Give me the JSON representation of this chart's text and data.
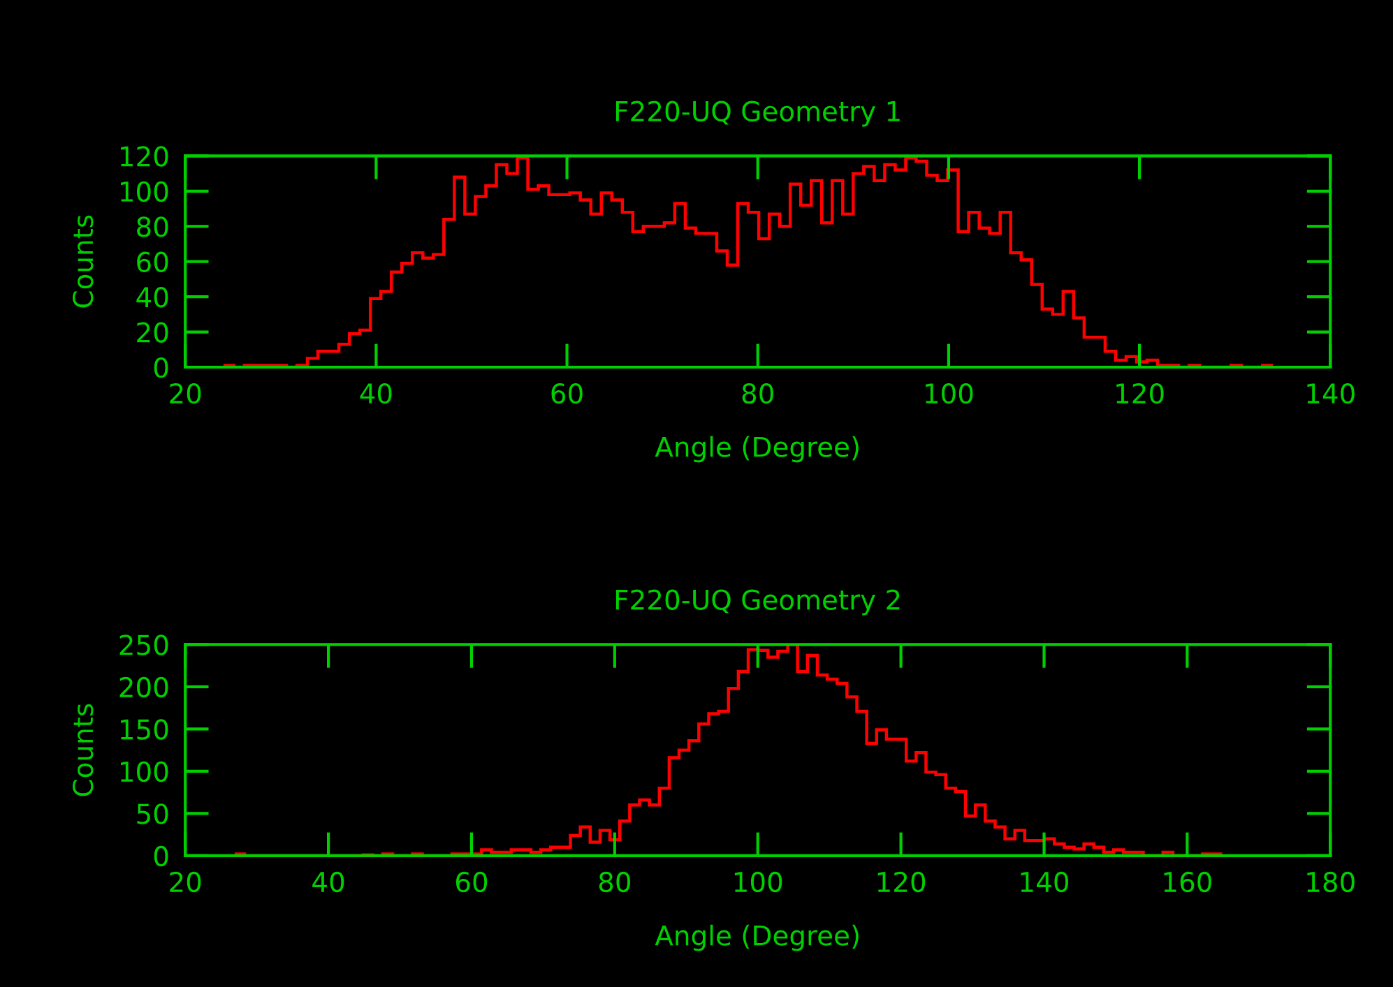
{
  "chart_data": [
    {
      "type": "histogram",
      "title": "F220-UQ Geometry 1",
      "xlabel": "Angle (Degree)",
      "ylabel": "Counts",
      "color": "#ff0000",
      "xlim": [
        20,
        140
      ],
      "ylim": [
        0,
        120
      ],
      "xticks": [
        20,
        40,
        60,
        80,
        100,
        120,
        140
      ],
      "yticks": [
        0,
        20,
        40,
        60,
        80,
        100,
        120
      ],
      "bins": [
        24,
        25.1,
        26.2,
        27.3,
        28.4,
        29.5,
        30.6,
        31.7,
        32.8,
        33.9,
        35,
        36.1,
        37.2,
        38.3,
        39.4,
        40.5,
        41.6,
        42.7,
        43.8,
        44.9,
        46,
        47.1,
        48.2,
        49.3,
        50.4,
        51.5,
        52.6,
        53.7,
        54.8,
        55.9,
        57,
        58.1,
        59.2,
        60.3,
        61.4,
        62.5,
        63.6,
        64.7,
        65.8,
        66.9,
        68,
        69.1,
        70.2,
        71.3,
        72.4,
        73.5,
        74.6,
        75.7,
        76.8,
        77.9,
        79,
        80.1,
        81.2,
        82.3,
        83.4,
        84.5,
        85.6,
        86.7,
        87.8,
        88.9,
        90,
        91.1,
        92.2,
        93.3,
        94.4,
        95.5,
        96.6,
        97.7,
        98.8,
        99.9,
        101,
        102.1,
        103.2,
        104.3,
        105.4,
        106.5,
        107.6,
        108.7,
        109.8,
        110.9,
        112,
        113.1,
        114.2,
        115.3,
        116.4,
        117.5,
        118.6,
        119.7,
        120.8,
        121.9,
        123,
        124.1,
        125.2,
        126.3,
        127.4,
        128.5,
        129.6,
        130.7,
        131.8,
        132.9,
        134
      ],
      "values": [
        1,
        0,
        1,
        1,
        1,
        1,
        0,
        1,
        5,
        9,
        9,
        13,
        19,
        21,
        39,
        43,
        54,
        59,
        65,
        62,
        64,
        84,
        108,
        87,
        97,
        103,
        115,
        110,
        119,
        101,
        103,
        98,
        98,
        99,
        95,
        87,
        99,
        95,
        88,
        77,
        80,
        80,
        82,
        93,
        79,
        76,
        76,
        66,
        58,
        93,
        88,
        73,
        87,
        80,
        104,
        92,
        106,
        82,
        106,
        87,
        110,
        114,
        106,
        115,
        112,
        119,
        117,
        109,
        106,
        112,
        77,
        88,
        79,
        76,
        88,
        65,
        61,
        47,
        33,
        30,
        43,
        28,
        17,
        17,
        9,
        4,
        6,
        3,
        4,
        1,
        1,
        0,
        1,
        0,
        0,
        0,
        1,
        0,
        0,
        1
      ]
    },
    {
      "type": "histogram",
      "title": "F220-UQ Geometry 2",
      "xlabel": "Angle (Degree)",
      "ylabel": "Counts",
      "color": "#ff0000",
      "xlim": [
        20,
        180
      ],
      "ylim": [
        0,
        250
      ],
      "xticks": [
        20,
        40,
        60,
        80,
        100,
        120,
        140,
        160,
        180
      ],
      "yticks": [
        0,
        50,
        100,
        150,
        200,
        250
      ],
      "bins": [
        26.9,
        28.28,
        29.66,
        31.04,
        32.42,
        33.8,
        35.18,
        36.56,
        37.94,
        39.32,
        40.7,
        42.08,
        43.46,
        44.84,
        46.22,
        47.6,
        48.98,
        50.36,
        51.74,
        53.12,
        54.5,
        55.88,
        57.26,
        58.64,
        60.02,
        61.4,
        62.78,
        64.16,
        65.54,
        66.92,
        68.3,
        69.68,
        71.06,
        72.44,
        73.82,
        75.2,
        76.58,
        77.96,
        79.34,
        80.72,
        82.1,
        83.48,
        84.86,
        86.24,
        87.62,
        89,
        90.38,
        91.76,
        93.14,
        94.52,
        95.9,
        97.28,
        98.66,
        100.04,
        101.42,
        102.8,
        104.18,
        105.56,
        106.94,
        108.32,
        109.7,
        111.08,
        112.46,
        113.84,
        115.22,
        116.6,
        117.98,
        119.36,
        120.74,
        122.12,
        123.5,
        124.88,
        126.26,
        127.64,
        129.02,
        130.4,
        131.78,
        133.16,
        134.54,
        135.92,
        137.3,
        138.68,
        140.06,
        141.44,
        142.82,
        144.2,
        145.58,
        146.96,
        148.34,
        149.72,
        151.1,
        152.48,
        153.86,
        155.24,
        156.62,
        158,
        159.38,
        160.76,
        162.14,
        163.52,
        164.9
      ],
      "values": [
        2,
        0,
        0,
        0,
        0,
        0,
        0,
        0,
        0,
        0,
        0,
        0,
        0,
        1,
        0,
        2,
        0,
        0,
        2,
        0,
        0,
        0,
        2,
        2,
        2,
        7,
        4,
        4,
        7,
        7,
        4,
        7,
        10,
        10,
        24,
        34,
        16,
        30,
        19,
        41,
        60,
        66,
        60,
        80,
        116,
        125,
        136,
        156,
        168,
        171,
        198,
        218,
        244,
        243,
        235,
        242,
        250,
        218,
        237,
        214,
        209,
        204,
        188,
        171,
        133,
        149,
        138,
        138,
        112,
        122,
        99,
        96,
        80,
        76,
        47,
        60,
        41,
        34,
        20,
        30,
        18,
        18,
        20,
        14,
        10,
        8,
        14,
        10,
        4,
        7,
        4,
        4,
        0,
        0,
        4,
        0,
        0,
        0,
        2,
        2
      ]
    }
  ]
}
